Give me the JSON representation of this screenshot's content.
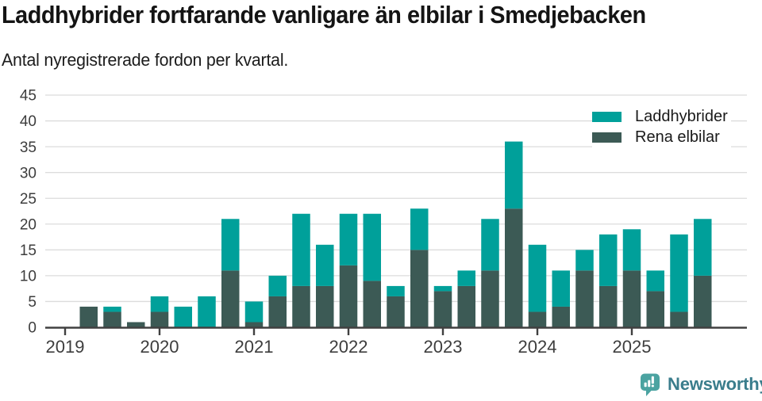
{
  "header": {
    "title": "Laddhybrider fortfarande vanligare än elbilar i Smedjebacken",
    "subtitle": "Antal nyregistrerade fordon per kvartal."
  },
  "legend": {
    "items": [
      {
        "label": "Laddhybrider",
        "color": "#00a09a"
      },
      {
        "label": "Rena elbilar",
        "color": "#3c5a55"
      }
    ]
  },
  "chart_data": {
    "type": "bar",
    "stacked": true,
    "title": "Laddhybrider fortfarande vanligare än elbilar i Smedjebacken",
    "subtitle": "Antal nyregistrerade fordon per kvartal.",
    "categories": [
      "2019-K1",
      "2019-K2",
      "2019-K3",
      "2019-K4",
      "2020-K1",
      "2020-K2",
      "2020-K3",
      "2020-K4",
      "2021-K1",
      "2021-K2",
      "2021-K3",
      "2021-K4",
      "2022-K1",
      "2022-K2",
      "2022-K3",
      "2022-K4",
      "2023-K1",
      "2023-K2",
      "2023-K3",
      "2023-K4",
      "2024-K1",
      "2024-K2",
      "2024-K3",
      "2024-K4",
      "2025-K1",
      "2025-K2",
      "2025-K3",
      "2025-K4"
    ],
    "series": [
      {
        "name": "Laddhybrider",
        "color": "#00a09a",
        "values": [
          0,
          0,
          1,
          0,
          3,
          4,
          6,
          10,
          4,
          4,
          14,
          8,
          10,
          13,
          2,
          8,
          1,
          3,
          10,
          13,
          13,
          7,
          4,
          10,
          8,
          4,
          15,
          11
        ]
      },
      {
        "name": "Rena elbilar",
        "color": "#3c5a55",
        "values": [
          0,
          4,
          3,
          1,
          3,
          0,
          0,
          11,
          1,
          6,
          8,
          8,
          12,
          9,
          6,
          15,
          7,
          8,
          11,
          23,
          3,
          4,
          11,
          8,
          11,
          7,
          3,
          10
        ]
      }
    ],
    "stack_order": [
      "Rena elbilar",
      "Laddhybrider"
    ],
    "x_tick_labels": [
      "2019",
      "2020",
      "2021",
      "2022",
      "2023",
      "2024",
      "2025"
    ],
    "x_tick_every_n_categories": 4,
    "yticks": [
      0,
      5,
      10,
      15,
      20,
      25,
      30,
      35,
      40,
      45
    ],
    "ylim": [
      0,
      45
    ],
    "grid": true,
    "legend_position": "top-right"
  },
  "footer": {
    "brand": "Newsworthy",
    "brand_color": "#3a7d8c",
    "icon": "speech-bubble-bar-chart-exclamation",
    "icon_color": "#4ba3a1"
  }
}
